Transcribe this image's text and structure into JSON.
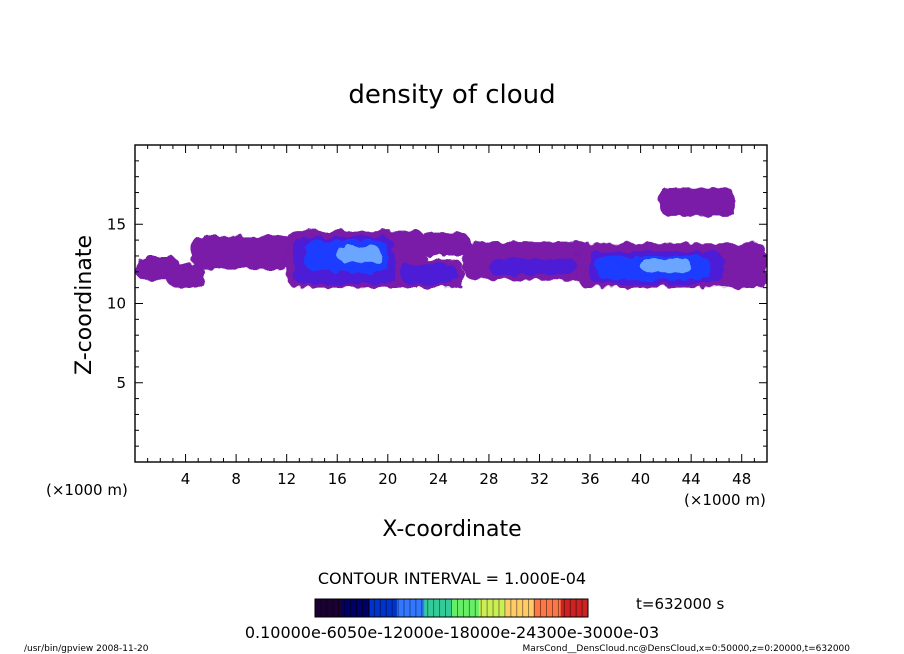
{
  "chart_data": {
    "type": "heatmap",
    "title": "density of cloud",
    "xlabel": "X-coordinate",
    "ylabel": "Z-coordinate",
    "x_unit": "(×1000 m)",
    "y_unit": "(×1000 m)",
    "xlim": [
      0,
      50
    ],
    "ylim": [
      0,
      20
    ],
    "x_ticks": [
      4,
      8,
      12,
      16,
      20,
      24,
      28,
      32,
      36,
      40,
      44,
      48
    ],
    "y_ticks": [
      5,
      10,
      15
    ],
    "contour_interval": "CONTOUR INTERVAL = 1.000E-04",
    "time_label": "t=632000 s",
    "colorbar_labels": "0.10000e-6050e-12000e-18000e-24300e-3000e-03",
    "colorbar_colors": [
      "#1a0033",
      "#000066",
      "#0033cc",
      "#3377ff",
      "#33cc99",
      "#66ee66",
      "#ccee55",
      "#ffcc66",
      "#ff7744",
      "#cc2222"
    ],
    "cloud_colors": {
      "low": "#7a1aa8",
      "mid": "#4d1fd6",
      "high": "#1f3cff",
      "peak": "#6aa6ff"
    },
    "regions": [
      {
        "level": "low",
        "x": [
          0,
          3.5
        ],
        "z": [
          11.5,
          13
        ]
      },
      {
        "level": "low",
        "x": [
          2.5,
          5.5
        ],
        "z": [
          11,
          12.5
        ]
      },
      {
        "level": "low",
        "x": [
          4.5,
          12.5
        ],
        "z": [
          12.2,
          14.3
        ]
      },
      {
        "level": "low",
        "x": [
          12,
          23
        ],
        "z": [
          11,
          14.6
        ]
      },
      {
        "level": "low",
        "x": [
          22,
          26
        ],
        "z": [
          11,
          12.8
        ]
      },
      {
        "level": "low",
        "x": [
          22.5,
          26.5
        ],
        "z": [
          13,
          14.5
        ]
      },
      {
        "level": "low",
        "x": [
          26,
          36
        ],
        "z": [
          11.5,
          13.9
        ]
      },
      {
        "level": "low",
        "x": [
          35,
          50
        ],
        "z": [
          11,
          13.8
        ]
      },
      {
        "level": "low",
        "x": [
          41.5,
          47.5
        ],
        "z": [
          15.5,
          17.3
        ]
      },
      {
        "level": "mid",
        "x": [
          12.5,
          20.5
        ],
        "z": [
          11.2,
          14.2
        ]
      },
      {
        "level": "mid",
        "x": [
          21,
          25.5
        ],
        "z": [
          11.2,
          12.5
        ]
      },
      {
        "level": "mid",
        "x": [
          28,
          35
        ],
        "z": [
          11.8,
          12.8
        ]
      },
      {
        "level": "mid",
        "x": [
          36,
          46.5
        ],
        "z": [
          11.2,
          13.3
        ]
      },
      {
        "level": "high",
        "x": [
          13.5,
          20
        ],
        "z": [
          12,
          14
        ]
      },
      {
        "level": "high",
        "x": [
          36.5,
          45.5
        ],
        "z": [
          11.5,
          13
        ]
      },
      {
        "level": "peak",
        "x": [
          16,
          19.5
        ],
        "z": [
          12.6,
          13.6
        ]
      },
      {
        "level": "peak",
        "x": [
          40,
          44
        ],
        "z": [
          12,
          12.8
        ]
      }
    ]
  },
  "footer": {
    "left": "/usr/bin/gpview   2008-11-20",
    "right": "MarsCond__DensCloud.nc@DensCloud,x=0:50000,z=0:20000,t=632000"
  }
}
